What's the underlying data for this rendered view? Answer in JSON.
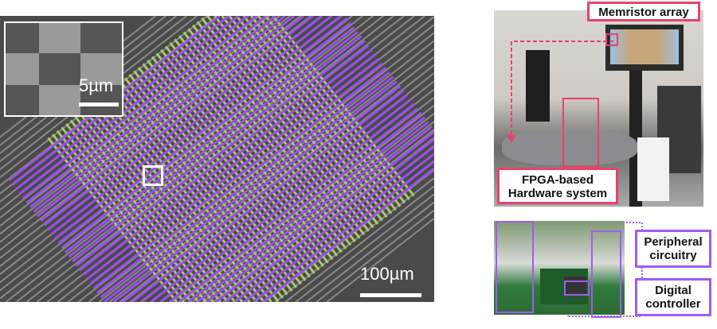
{
  "left_panel": {
    "inset_scale_label": "5µm",
    "main_scale_label": "100µm",
    "colors": {
      "top_electrodes": "#9b4fe8",
      "bottom_electrodes": "#a8c86a",
      "substrate": "#4a4a4a"
    }
  },
  "right_panel": {
    "memristor_label": "Memristor array",
    "fpga_label_line1": "FPGA-based",
    "fpga_label_line2": "Hardware system",
    "peripheral_label_line1": "Peripheral",
    "peripheral_label_line2": "circuitry",
    "digital_label_line1": "Digital",
    "digital_label_line2": "controller",
    "colors": {
      "highlight_red": "#e8426a",
      "highlight_purple": "#a05cf0"
    }
  }
}
